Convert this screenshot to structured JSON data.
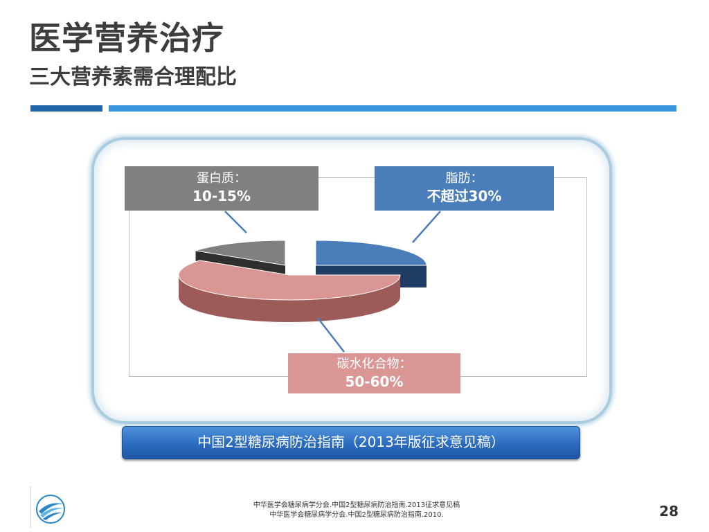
{
  "slide": {
    "title": "医学营养治疗",
    "subtitle": "三大营养素需合理配比",
    "source_banner": "中国2型糖尿病防治指南（2013年版征求意见稿）",
    "references": [
      "中华医学会糖尿病学分会.中国2型糖尿病防治指南.2013征求意见稿",
      "中华医学会糖尿病学分会.中国2型糖尿病防治指南.2010."
    ],
    "page_number": "28"
  },
  "labels": {
    "protein": {
      "name": "蛋白质：",
      "value": "10-15%"
    },
    "fat": {
      "name": "脂肪：",
      "value": "不超过30%"
    },
    "carb": {
      "name": "碳水化合物：",
      "value": "50-60%"
    }
  },
  "colors": {
    "protein": "#808080",
    "fat": "#4a7ebb",
    "carb": "#d99694",
    "banner": "#2b6bbf",
    "title_bar_dark": "#1f63a8",
    "title_bar_light": "#3a97df"
  },
  "chart_data": {
    "type": "pie",
    "style": "3d-exploded",
    "categories": [
      "蛋白质",
      "脂肪",
      "碳水化合物"
    ],
    "values": [
      15,
      25,
      60
    ],
    "labels": [
      "蛋白质：10-15%",
      "脂肪：不超过30%",
      "碳水化合物：50-60%"
    ],
    "legend": "none"
  }
}
